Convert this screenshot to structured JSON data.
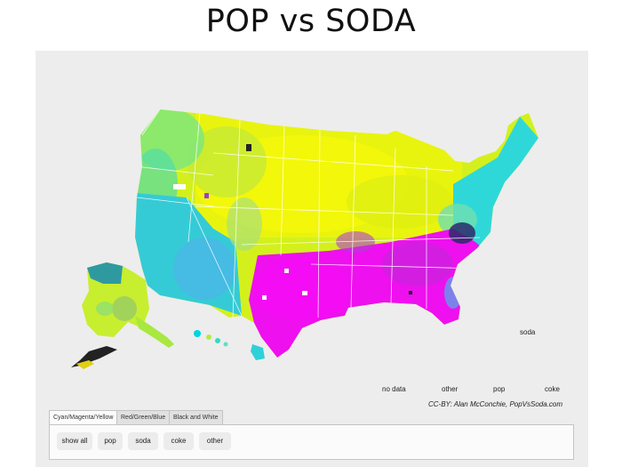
{
  "title": "POP vs SODA",
  "legend": {
    "no_data": "no data",
    "other": "other",
    "soda": "soda",
    "pop": "pop",
    "coke": "coke"
  },
  "colors": {
    "pop": "#ffff00",
    "soda": "#00dede",
    "coke": "#ff00ff",
    "other": "#000000",
    "no_data": "#ffffff",
    "panel_background": "#ededed"
  },
  "credit": "CC-BY: Alan McConchie, PopVsSoda.com",
  "tabs": [
    {
      "label": "Cyan/Magenta/Yellow",
      "active": true
    },
    {
      "label": "Red/Green/Blue",
      "active": false
    },
    {
      "label": "Black and White",
      "active": false
    }
  ],
  "buttons": [
    "show all",
    "pop",
    "soda",
    "coke",
    "other"
  ]
}
